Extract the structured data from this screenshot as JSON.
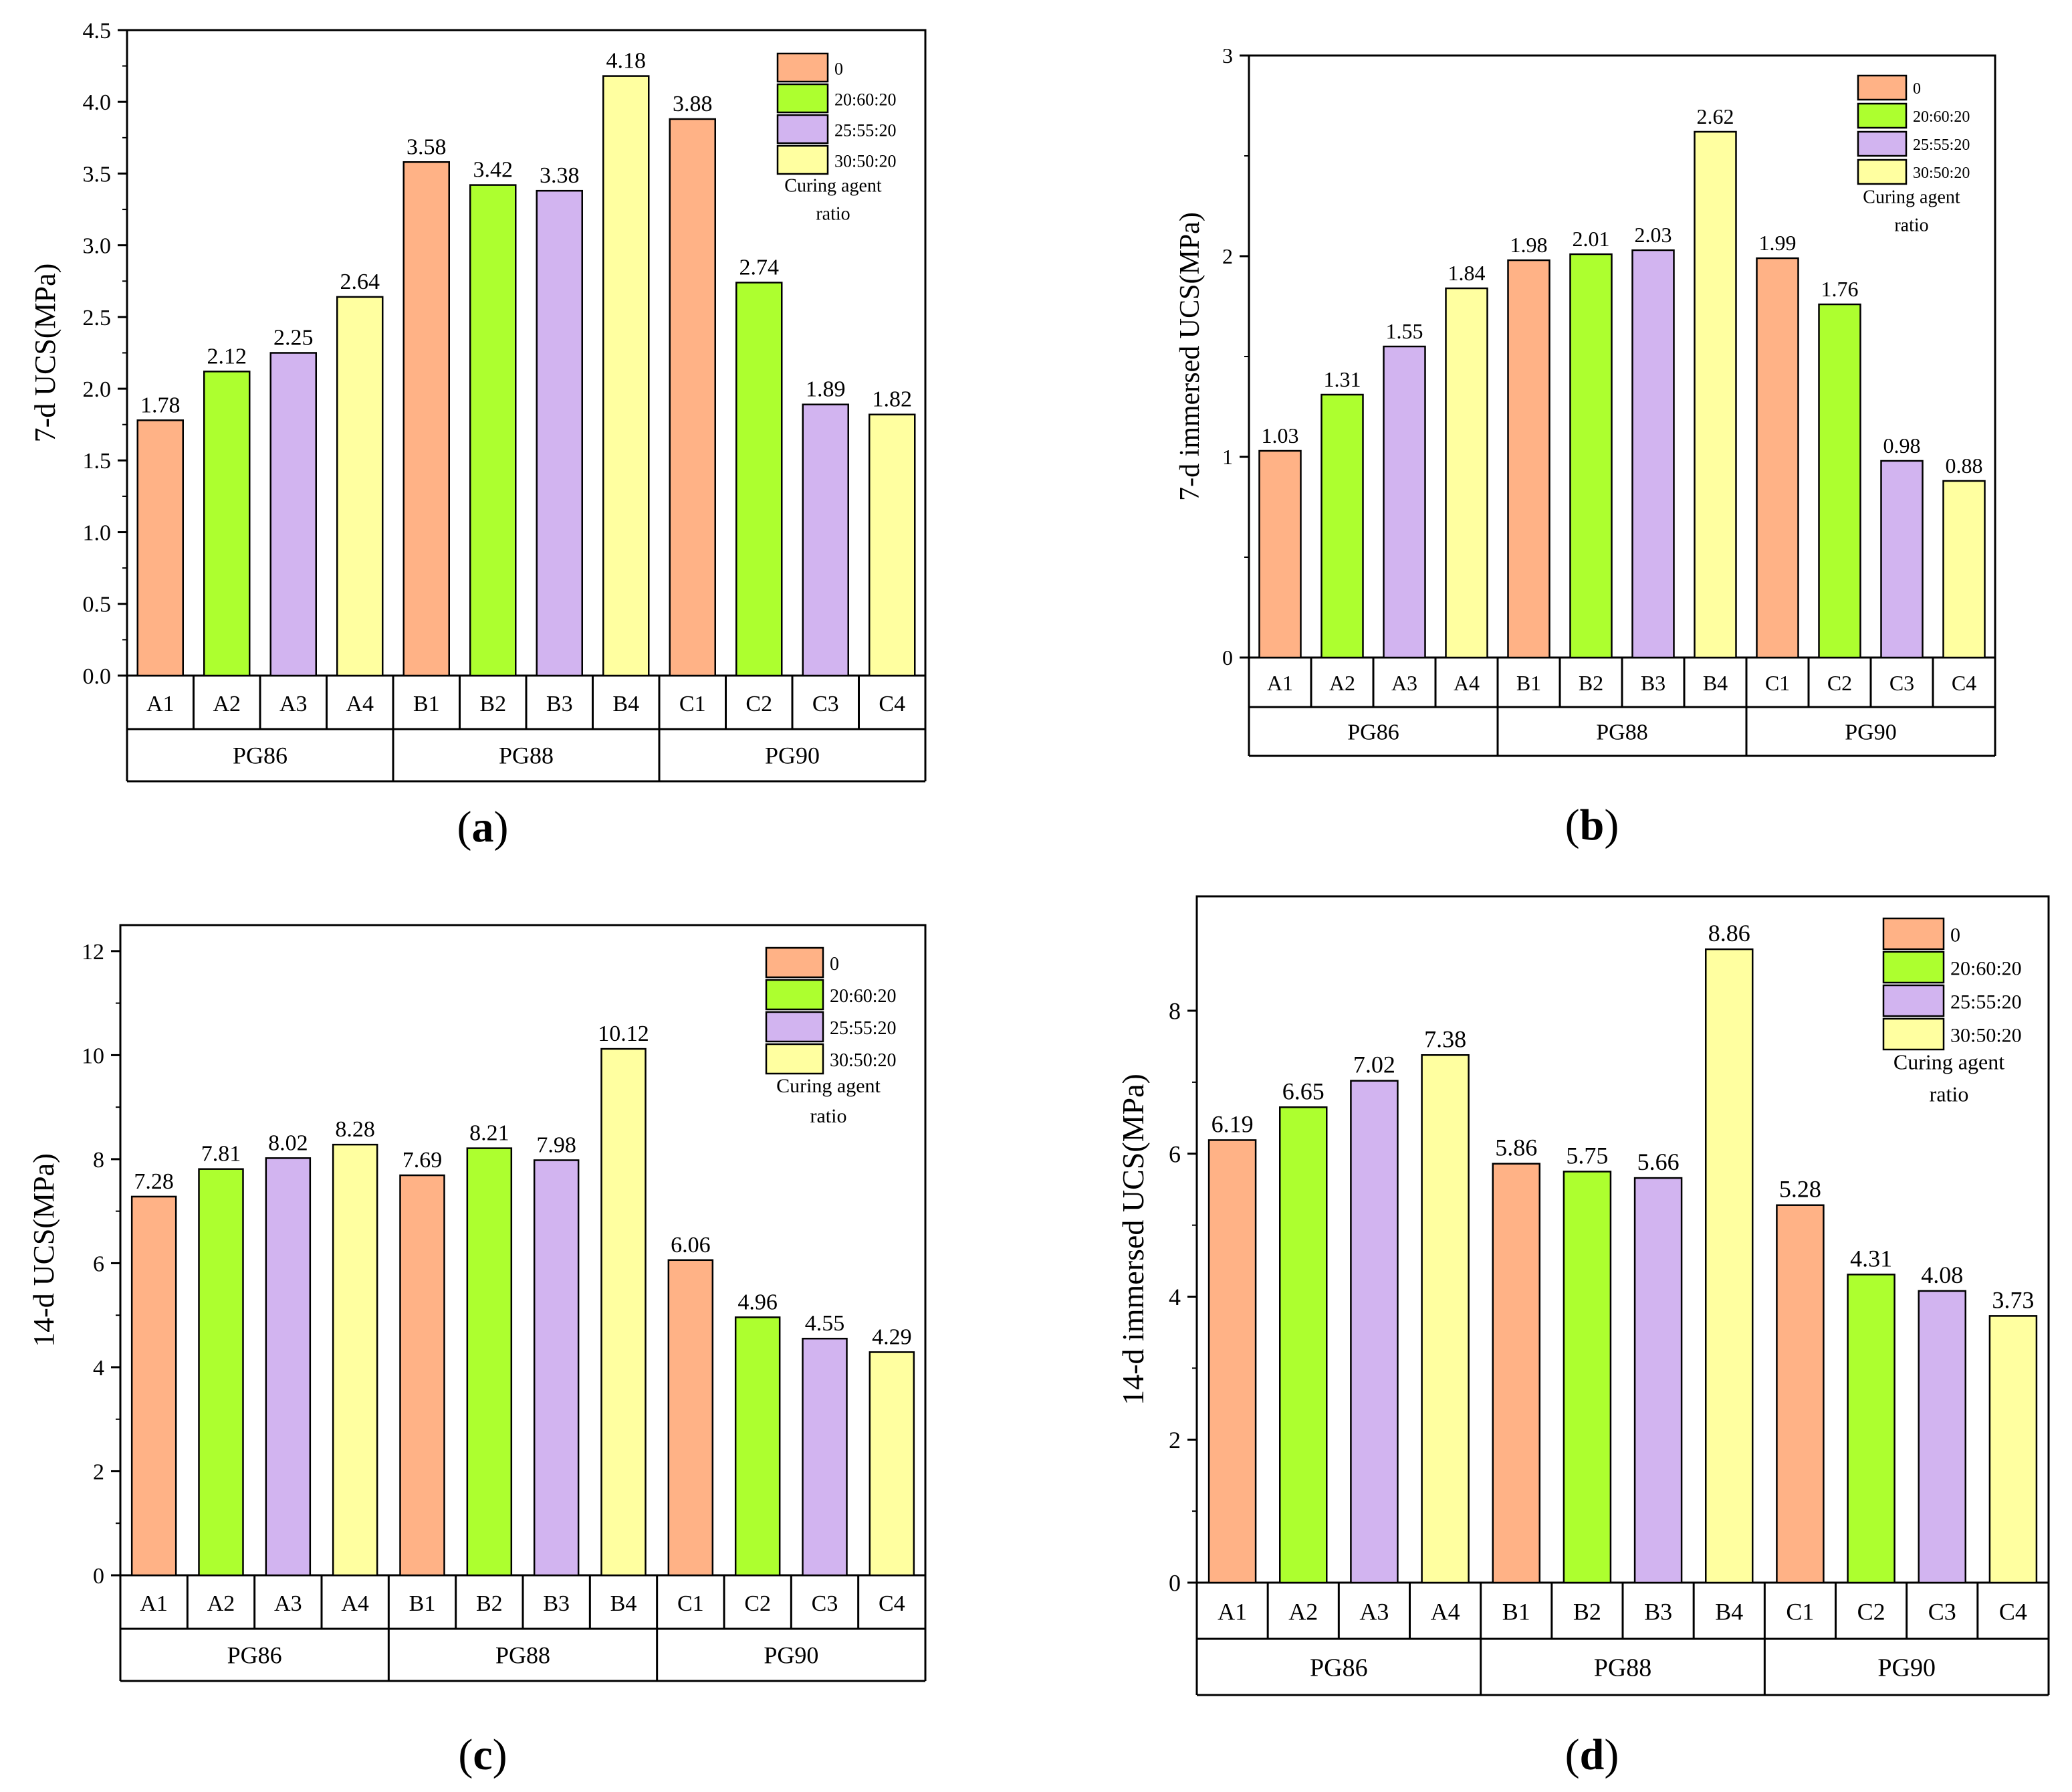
{
  "colors": {
    "0": "#FFB286",
    "20:60:20": "#ADFF2F",
    "25:55:20": "#D2B4F0",
    "30:50:20": "#FFFFA0"
  },
  "legend": {
    "entries": [
      "0",
      "20:60:20",
      "25:55:20",
      "30:50:20"
    ],
    "title_lines": [
      "Curing agent",
      "ratio"
    ]
  },
  "chart_data": [
    {
      "panel": "(a)",
      "type": "bar",
      "ylabel": "7-d UCS(MPa)",
      "ylim": [
        0,
        4.5
      ],
      "yticks": [
        "0.0",
        "0.5",
        "1.0",
        "1.5",
        "2.0",
        "2.5",
        "3.0",
        "3.5",
        "4.0",
        "4.5"
      ],
      "groups": [
        "PG86",
        "PG88",
        "PG90"
      ],
      "categories": [
        "A1",
        "A2",
        "A3",
        "A4",
        "B1",
        "B2",
        "B3",
        "B4",
        "C1",
        "C2",
        "C3",
        "C4"
      ],
      "series": [
        "0",
        "20:60:20",
        "25:55:20",
        "30:50:20",
        "0",
        "20:60:20",
        "25:55:20",
        "30:50:20",
        "0",
        "20:60:20",
        "25:55:20",
        "30:50:20"
      ],
      "values": [
        1.78,
        2.12,
        2.25,
        2.64,
        3.58,
        3.42,
        3.38,
        4.18,
        3.88,
        2.74,
        1.89,
        1.82
      ],
      "labels": [
        "1.78",
        "2.12",
        "2.25",
        "2.64",
        "3.58",
        "3.42",
        "3.38",
        "4.18",
        "3.88",
        "2.74",
        "1.89",
        "1.82"
      ],
      "legend": "top-right",
      "grid": false
    },
    {
      "panel": "(b)",
      "type": "bar",
      "ylabel": "7-d immersed UCS(MPa)",
      "ylim": [
        0,
        3
      ],
      "yticks": [
        "0",
        "1",
        "2",
        "3"
      ],
      "groups": [
        "PG86",
        "PG88",
        "PG90"
      ],
      "categories": [
        "A1",
        "A2",
        "A3",
        "A4",
        "B1",
        "B2",
        "B3",
        "B4",
        "C1",
        "C2",
        "C3",
        "C4"
      ],
      "series": [
        "0",
        "20:60:20",
        "25:55:20",
        "30:50:20",
        "0",
        "20:60:20",
        "25:55:20",
        "30:50:20",
        "0",
        "20:60:20",
        "25:55:20",
        "30:50:20"
      ],
      "values": [
        1.03,
        1.31,
        1.55,
        1.84,
        1.98,
        2.01,
        2.03,
        2.62,
        1.99,
        1.76,
        0.98,
        0.88
      ],
      "labels": [
        "1.03",
        "1.31",
        "1.55",
        "1.84",
        "1.98",
        "2.01",
        "2.03",
        "2.62",
        "1.99",
        "1.76",
        "0.98",
        "0.88"
      ],
      "legend": "top-right",
      "grid": false
    },
    {
      "panel": "(c)",
      "type": "bar",
      "ylabel": "14-d UCS(MPa)",
      "ylim": [
        0,
        12.5
      ],
      "yticks": [
        "0",
        "2",
        "4",
        "6",
        "8",
        "10",
        "12"
      ],
      "groups": [
        "PG86",
        "PG88",
        "PG90"
      ],
      "categories": [
        "A1",
        "A2",
        "A3",
        "A4",
        "B1",
        "B2",
        "B3",
        "B4",
        "C1",
        "C2",
        "C3",
        "C4"
      ],
      "series": [
        "0",
        "20:60:20",
        "25:55:20",
        "30:50:20",
        "0",
        "20:60:20",
        "25:55:20",
        "30:50:20",
        "0",
        "20:60:20",
        "25:55:20",
        "30:50:20"
      ],
      "values": [
        7.28,
        7.81,
        8.02,
        8.28,
        7.69,
        8.21,
        7.98,
        10.12,
        6.06,
        4.96,
        4.55,
        4.29
      ],
      "labels": [
        "7.28",
        "7.81",
        "8.02",
        "8.28",
        "7.69",
        "8.21",
        "7.98",
        "10.12",
        "6.06",
        "4.96",
        "4.55",
        "4.29"
      ],
      "legend": "top-right",
      "grid": false
    },
    {
      "panel": "(d)",
      "type": "bar",
      "ylabel": "14-d immersed UCS(MPa)",
      "ylim": [
        0,
        9.6
      ],
      "yticks": [
        "0",
        "2",
        "4",
        "6",
        "8"
      ],
      "groups": [
        "PG86",
        "PG88",
        "PG90"
      ],
      "categories": [
        "A1",
        "A2",
        "A3",
        "A4",
        "B1",
        "B2",
        "B3",
        "B4",
        "C1",
        "C2",
        "C3",
        "C4"
      ],
      "series": [
        "0",
        "20:60:20",
        "25:55:20",
        "30:50:20",
        "0",
        "20:60:20",
        "25:55:20",
        "30:50:20",
        "0",
        "20:60:20",
        "25:55:20",
        "30:50:20"
      ],
      "values": [
        6.19,
        6.65,
        7.02,
        7.38,
        5.86,
        5.75,
        5.66,
        8.86,
        5.28,
        4.31,
        4.08,
        3.73
      ],
      "labels": [
        "6.19",
        "6.65",
        "7.02",
        "7.38",
        "5.86",
        "5.75",
        "5.66",
        "8.86",
        "5.28",
        "4.31",
        "4.08",
        "3.73"
      ],
      "legend": "top-right",
      "grid": false
    }
  ]
}
